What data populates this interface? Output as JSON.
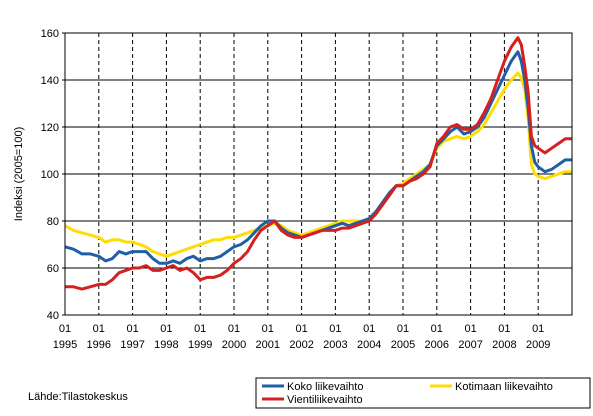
{
  "chart_data": {
    "type": "line",
    "title": "",
    "xlabel": "",
    "ylabel": "Indeksi (2005=100)",
    "ylim": [
      40,
      160
    ],
    "yticks": [
      40,
      60,
      80,
      100,
      120,
      140,
      160
    ],
    "grid": "vertical dashed lines at each year start",
    "legend_placement": "bottom-right",
    "x_years": [
      "1995",
      "1996",
      "1997",
      "1998",
      "1999",
      "2000",
      "2001",
      "2002",
      "2003",
      "2004",
      "2005",
      "2006",
      "2007",
      "2008",
      "2009"
    ],
    "x_month_label": "01",
    "x_range": [
      1995.0,
      2010.0
    ],
    "series": [
      {
        "name": "Koko liikevaihto",
        "color": "#1f5fa8",
        "x": [
          1995.0,
          1995.25,
          1995.5,
          1995.75,
          1996.0,
          1996.2,
          1996.4,
          1996.6,
          1996.8,
          1997.0,
          1997.2,
          1997.4,
          1997.6,
          1997.8,
          1998.0,
          1998.2,
          1998.4,
          1998.6,
          1998.8,
          1999.0,
          1999.2,
          1999.4,
          1999.6,
          1999.8,
          2000.0,
          2000.2,
          2000.4,
          2000.6,
          2000.8,
          2001.0,
          2001.2,
          2001.4,
          2001.6,
          2001.8,
          2002.0,
          2002.2,
          2002.4,
          2002.6,
          2002.8,
          2003.0,
          2003.2,
          2003.4,
          2003.6,
          2003.8,
          2004.0,
          2004.2,
          2004.4,
          2004.6,
          2004.8,
          2005.0,
          2005.2,
          2005.4,
          2005.6,
          2005.8,
          2006.0,
          2006.2,
          2006.4,
          2006.6,
          2006.8,
          2007.0,
          2007.2,
          2007.4,
          2007.6,
          2007.8,
          2008.0,
          2008.2,
          2008.4,
          2008.5,
          2008.6,
          2008.7,
          2008.8,
          2008.9,
          2009.0,
          2009.2,
          2009.4,
          2009.6,
          2009.8,
          2010.0
        ],
        "values": [
          69,
          68,
          66,
          66,
          65,
          63,
          64,
          67,
          66,
          67,
          67,
          67,
          64,
          62,
          62,
          63,
          62,
          64,
          65,
          63,
          64,
          64,
          65,
          67,
          69,
          70,
          72,
          75,
          78,
          80,
          80,
          77,
          75,
          74,
          73,
          74,
          75,
          76,
          77,
          78,
          79,
          78,
          79,
          80,
          81,
          84,
          88,
          92,
          95,
          95,
          97,
          99,
          101,
          104,
          112,
          115,
          118,
          120,
          117,
          118,
          120,
          124,
          130,
          136,
          142,
          148,
          152,
          148,
          140,
          128,
          112,
          105,
          103,
          101,
          102,
          104,
          106,
          106
        ]
      },
      {
        "name": "Kotimaan liikevaihto",
        "color": "#ffdd00",
        "x": [
          1995.0,
          1995.25,
          1995.5,
          1995.75,
          1996.0,
          1996.2,
          1996.4,
          1996.6,
          1996.8,
          1997.0,
          1997.2,
          1997.4,
          1997.6,
          1997.8,
          1998.0,
          1998.2,
          1998.4,
          1998.6,
          1998.8,
          1999.0,
          1999.2,
          1999.4,
          1999.6,
          1999.8,
          2000.0,
          2000.2,
          2000.4,
          2000.6,
          2000.8,
          2001.0,
          2001.2,
          2001.4,
          2001.6,
          2001.8,
          2002.0,
          2002.2,
          2002.4,
          2002.6,
          2002.8,
          2003.0,
          2003.2,
          2003.4,
          2003.6,
          2003.8,
          2004.0,
          2004.2,
          2004.4,
          2004.6,
          2004.8,
          2005.0,
          2005.2,
          2005.4,
          2005.6,
          2005.8,
          2006.0,
          2006.2,
          2006.4,
          2006.6,
          2006.8,
          2007.0,
          2007.2,
          2007.4,
          2007.6,
          2007.8,
          2008.0,
          2008.2,
          2008.4,
          2008.5,
          2008.6,
          2008.7,
          2008.8,
          2008.9,
          2009.0,
          2009.2,
          2009.4,
          2009.6,
          2009.8,
          2010.0
        ],
        "values": [
          78,
          76,
          75,
          74,
          73,
          71,
          72,
          72,
          71,
          71,
          70,
          69,
          67,
          66,
          65,
          66,
          67,
          68,
          69,
          70,
          71,
          72,
          72,
          73,
          73,
          74,
          75,
          76,
          77,
          78,
          79,
          78,
          76,
          75,
          74,
          75,
          76,
          77,
          78,
          79,
          80,
          80,
          80,
          80,
          81,
          84,
          88,
          92,
          95,
          96,
          98,
          100,
          102,
          104,
          111,
          114,
          115,
          116,
          115,
          116,
          118,
          121,
          126,
          131,
          136,
          140,
          143,
          141,
          136,
          124,
          104,
          100,
          99,
          98,
          99,
          100,
          101,
          101
        ]
      },
      {
        "name": "Vientiliikevaihto",
        "color": "#d62020",
        "x": [
          1995.0,
          1995.25,
          1995.5,
          1995.75,
          1996.0,
          1996.2,
          1996.4,
          1996.6,
          1996.8,
          1997.0,
          1997.2,
          1997.4,
          1997.6,
          1997.8,
          1998.0,
          1998.2,
          1998.4,
          1998.6,
          1998.8,
          1999.0,
          1999.2,
          1999.4,
          1999.6,
          1999.8,
          2000.0,
          2000.2,
          2000.4,
          2000.6,
          2000.8,
          2001.0,
          2001.2,
          2001.4,
          2001.6,
          2001.8,
          2002.0,
          2002.2,
          2002.4,
          2002.6,
          2002.8,
          2003.0,
          2003.2,
          2003.4,
          2003.6,
          2003.8,
          2004.0,
          2004.2,
          2004.4,
          2004.6,
          2004.8,
          2005.0,
          2005.2,
          2005.4,
          2005.6,
          2005.8,
          2006.0,
          2006.2,
          2006.4,
          2006.6,
          2006.8,
          2007.0,
          2007.2,
          2007.4,
          2007.6,
          2007.8,
          2008.0,
          2008.2,
          2008.4,
          2008.5,
          2008.6,
          2008.7,
          2008.8,
          2008.9,
          2009.0,
          2009.2,
          2009.4,
          2009.6,
          2009.8,
          2010.0
        ],
        "values": [
          52,
          52,
          51,
          52,
          53,
          53,
          55,
          58,
          59,
          60,
          60,
          61,
          59,
          59,
          60,
          61,
          59,
          60,
          58,
          55,
          56,
          56,
          57,
          59,
          62,
          64,
          67,
          72,
          76,
          78,
          80,
          76,
          74,
          73,
          73,
          74,
          75,
          76,
          76,
          76,
          77,
          77,
          78,
          79,
          80,
          83,
          87,
          91,
          95,
          95,
          97,
          98,
          100,
          103,
          113,
          116,
          120,
          121,
          119,
          119,
          121,
          126,
          132,
          140,
          148,
          154,
          158,
          155,
          146,
          135,
          116,
          112,
          111,
          109,
          111,
          113,
          115,
          115
        ]
      }
    ]
  },
  "source": "Lähde:Tilastokeskus"
}
